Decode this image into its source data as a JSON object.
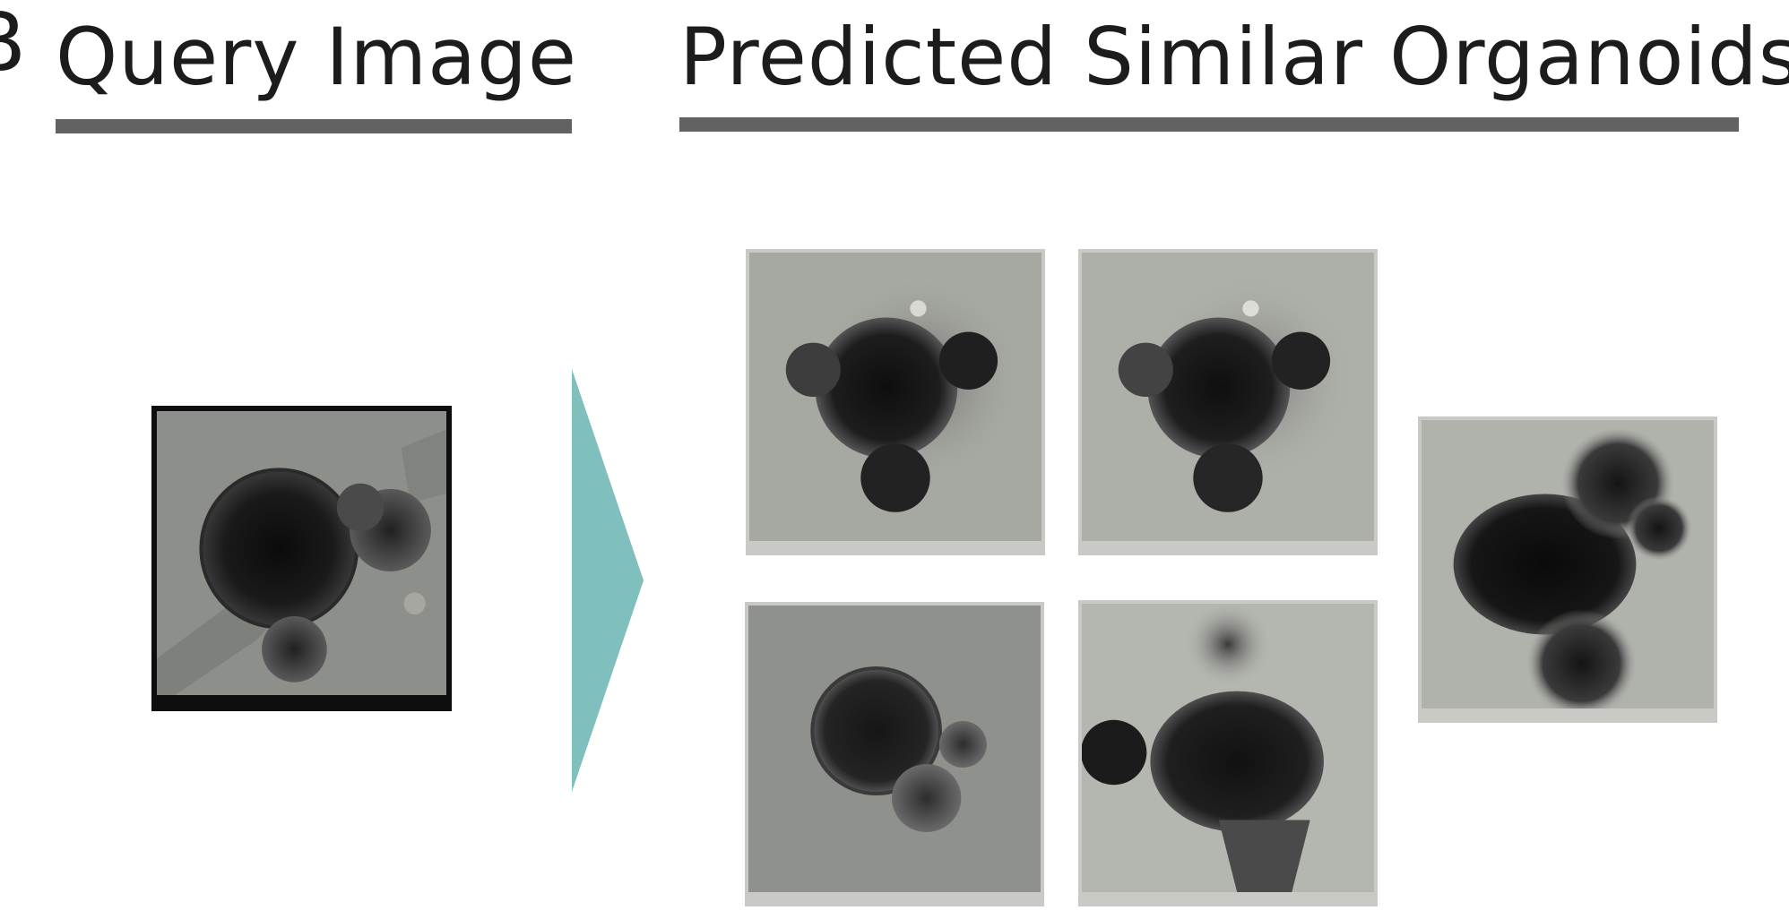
{
  "panel_label": "B",
  "headings": {
    "query": "Query Image",
    "predicted": "Predicted Similar Organoids"
  },
  "colors": {
    "rule": "#626262",
    "arrow": "#80c0bc",
    "query_frame": "#0e0e0e",
    "result_frame": "#c9cac5"
  },
  "query_image": {
    "icon": "organoid-microscopy-image"
  },
  "predicted_images": [
    {
      "icon": "organoid-microscopy-image"
    },
    {
      "icon": "organoid-microscopy-image"
    },
    {
      "icon": "organoid-microscopy-image"
    },
    {
      "icon": "organoid-microscopy-image"
    },
    {
      "icon": "organoid-microscopy-image"
    }
  ]
}
